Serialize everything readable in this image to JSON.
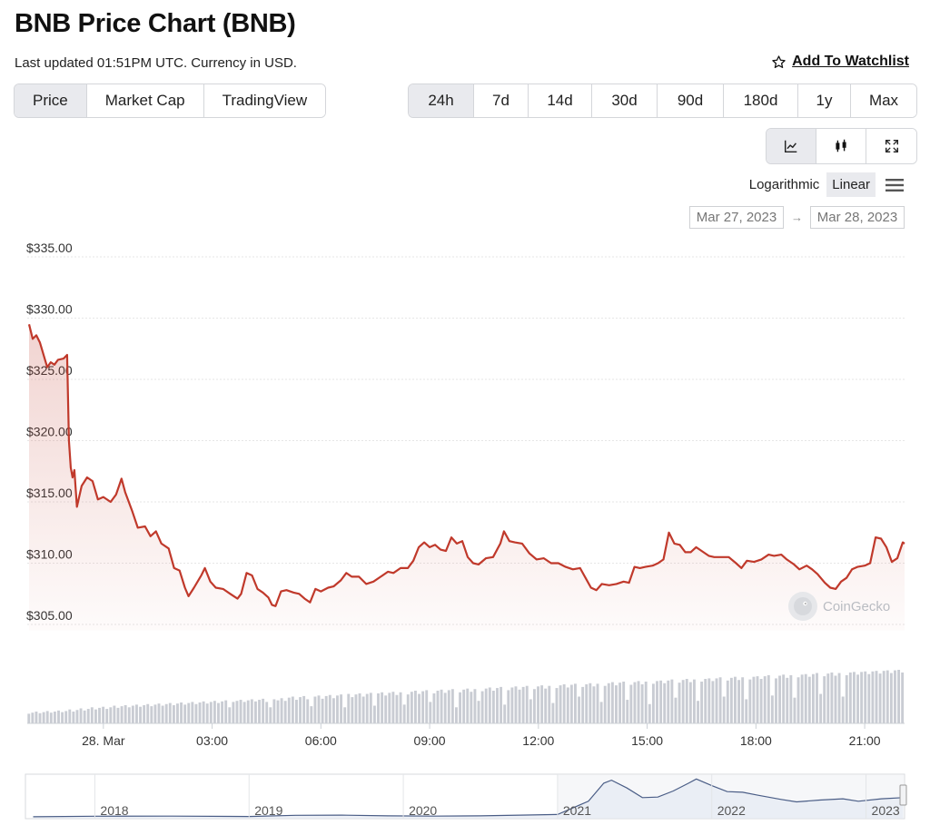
{
  "header": {
    "title": "BNB Price Chart (BNB)",
    "updated": "Last updated 01:51PM UTC. Currency in USD.",
    "watchlist_label": "Add To Watchlist"
  },
  "chart_types": [
    {
      "label": "Price",
      "active": true
    },
    {
      "label": "Market Cap",
      "active": false
    },
    {
      "label": "TradingView",
      "active": false
    }
  ],
  "ranges": [
    {
      "label": "24h",
      "active": true
    },
    {
      "label": "7d",
      "active": false
    },
    {
      "label": "14d",
      "active": false
    },
    {
      "label": "30d",
      "active": false
    },
    {
      "label": "90d",
      "active": false
    },
    {
      "label": "180d",
      "active": false
    },
    {
      "label": "1y",
      "active": false
    },
    {
      "label": "Max",
      "active": false
    }
  ],
  "views": [
    "line-chart-icon",
    "candlestick-icon",
    "fullscreen-icon"
  ],
  "scale": {
    "log_label": "Logarithmic",
    "linear_label": "Linear",
    "active": "Linear"
  },
  "date_range": {
    "from": "Mar 27, 2023",
    "to": "Mar 28, 2023"
  },
  "watermark": "CoinGecko",
  "colors": {
    "price_line": "#c0392b",
    "volume": "#c9ccd3",
    "navigator_line": "#4a5d86",
    "navigator_fill": "#e3e8f1"
  },
  "chart_data": {
    "type": "line",
    "title": "",
    "xlabel": "",
    "ylabel": "",
    "x_unit": "hours since 28 Mar 00:00 UTC",
    "xlim": [
      -2.1,
      22.1
    ],
    "ylim": [
      304,
      336
    ],
    "yticks": [
      335,
      330,
      325,
      320,
      315,
      310,
      305
    ],
    "ytick_labels": [
      "$335.00",
      "$330.00",
      "$325.00",
      "$320.00",
      "$315.00",
      "$310.00",
      "$305.00"
    ],
    "xticks": [
      {
        "x": 0,
        "label": "28. Mar"
      },
      {
        "x": 3,
        "label": "03:00"
      },
      {
        "x": 6,
        "label": "06:00"
      },
      {
        "x": 9,
        "label": "09:00"
      },
      {
        "x": 12,
        "label": "12:00"
      },
      {
        "x": 15,
        "label": "15:00"
      },
      {
        "x": 18,
        "label": "18:00"
      },
      {
        "x": 21,
        "label": "21:00"
      }
    ],
    "grid": "horizontal",
    "series": [
      {
        "points": [
          [
            -2.05,
            329.5
          ],
          [
            -1.95,
            328.3
          ],
          [
            -1.85,
            328.6
          ],
          [
            -1.75,
            328.0
          ],
          [
            -1.65,
            327.0
          ],
          [
            -1.55,
            326.0
          ],
          [
            -1.45,
            326.4
          ],
          [
            -1.35,
            326.2
          ],
          [
            -1.25,
            326.6
          ],
          [
            -1.1,
            326.7
          ],
          [
            -1.0,
            327.0
          ],
          [
            -0.95,
            320.0
          ],
          [
            -0.9,
            317.8
          ],
          [
            -0.85,
            317.0
          ],
          [
            -0.8,
            317.6
          ],
          [
            -0.73,
            314.6
          ],
          [
            -0.6,
            316.3
          ],
          [
            -0.45,
            317.0
          ],
          [
            -0.3,
            316.7
          ],
          [
            -0.15,
            315.2
          ],
          [
            0.0,
            315.4
          ],
          [
            0.2,
            315.0
          ],
          [
            0.35,
            315.6
          ],
          [
            0.5,
            316.9
          ],
          [
            0.6,
            315.8
          ],
          [
            0.8,
            314.2
          ],
          [
            0.95,
            312.9
          ],
          [
            1.15,
            313.0
          ],
          [
            1.3,
            312.2
          ],
          [
            1.45,
            312.6
          ],
          [
            1.6,
            311.6
          ],
          [
            1.8,
            311.2
          ],
          [
            1.95,
            309.6
          ],
          [
            2.1,
            309.4
          ],
          [
            2.25,
            308.0
          ],
          [
            2.35,
            307.3
          ],
          [
            2.5,
            308.0
          ],
          [
            2.7,
            309.0
          ],
          [
            2.8,
            309.6
          ],
          [
            2.95,
            308.5
          ],
          [
            3.1,
            308.0
          ],
          [
            3.3,
            307.9
          ],
          [
            3.5,
            307.5
          ],
          [
            3.7,
            307.1
          ],
          [
            3.8,
            307.5
          ],
          [
            3.95,
            309.2
          ],
          [
            4.1,
            309.0
          ],
          [
            4.25,
            307.9
          ],
          [
            4.4,
            307.6
          ],
          [
            4.55,
            307.2
          ],
          [
            4.65,
            306.6
          ],
          [
            4.75,
            306.5
          ],
          [
            4.9,
            307.7
          ],
          [
            5.05,
            307.8
          ],
          [
            5.25,
            307.6
          ],
          [
            5.4,
            307.5
          ],
          [
            5.55,
            307.1
          ],
          [
            5.7,
            306.8
          ],
          [
            5.85,
            307.9
          ],
          [
            6.0,
            307.7
          ],
          [
            6.2,
            308.0
          ],
          [
            6.35,
            308.1
          ],
          [
            6.55,
            308.6
          ],
          [
            6.7,
            309.2
          ],
          [
            6.85,
            308.9
          ],
          [
            7.05,
            308.9
          ],
          [
            7.25,
            308.3
          ],
          [
            7.45,
            308.5
          ],
          [
            7.65,
            308.9
          ],
          [
            7.85,
            309.3
          ],
          [
            8.0,
            309.2
          ],
          [
            8.2,
            309.6
          ],
          [
            8.4,
            309.6
          ],
          [
            8.55,
            310.2
          ],
          [
            8.7,
            311.3
          ],
          [
            8.85,
            311.7
          ],
          [
            9.0,
            311.3
          ],
          [
            9.15,
            311.5
          ],
          [
            9.3,
            311.1
          ],
          [
            9.45,
            311.0
          ],
          [
            9.6,
            312.1
          ],
          [
            9.75,
            311.6
          ],
          [
            9.9,
            311.8
          ],
          [
            10.05,
            310.5
          ],
          [
            10.2,
            310.0
          ],
          [
            10.35,
            309.9
          ],
          [
            10.55,
            310.4
          ],
          [
            10.75,
            310.5
          ],
          [
            10.95,
            311.6
          ],
          [
            11.05,
            312.6
          ],
          [
            11.2,
            311.8
          ],
          [
            11.35,
            311.7
          ],
          [
            11.55,
            311.6
          ],
          [
            11.75,
            310.8
          ],
          [
            11.95,
            310.3
          ],
          [
            12.15,
            310.4
          ],
          [
            12.35,
            310.0
          ],
          [
            12.55,
            310.0
          ],
          [
            12.75,
            309.7
          ],
          [
            12.95,
            309.5
          ],
          [
            13.15,
            309.6
          ],
          [
            13.3,
            308.8
          ],
          [
            13.45,
            308.0
          ],
          [
            13.6,
            307.8
          ],
          [
            13.75,
            308.3
          ],
          [
            13.95,
            308.2
          ],
          [
            14.15,
            308.3
          ],
          [
            14.35,
            308.5
          ],
          [
            14.5,
            308.4
          ],
          [
            14.65,
            309.7
          ],
          [
            14.8,
            309.6
          ],
          [
            14.95,
            309.7
          ],
          [
            15.15,
            309.8
          ],
          [
            15.3,
            310.0
          ],
          [
            15.45,
            310.3
          ],
          [
            15.6,
            312.5
          ],
          [
            15.75,
            311.6
          ],
          [
            15.9,
            311.5
          ],
          [
            16.05,
            310.9
          ],
          [
            16.2,
            310.9
          ],
          [
            16.35,
            311.3
          ],
          [
            16.5,
            311.0
          ],
          [
            16.7,
            310.6
          ],
          [
            16.85,
            310.5
          ],
          [
            17.05,
            310.5
          ],
          [
            17.25,
            310.5
          ],
          [
            17.45,
            310.0
          ],
          [
            17.6,
            309.6
          ],
          [
            17.75,
            310.2
          ],
          [
            17.95,
            310.1
          ],
          [
            18.15,
            310.3
          ],
          [
            18.35,
            310.7
          ],
          [
            18.5,
            310.6
          ],
          [
            18.7,
            310.7
          ],
          [
            18.85,
            310.3
          ],
          [
            19.05,
            309.9
          ],
          [
            19.2,
            309.5
          ],
          [
            19.4,
            309.8
          ],
          [
            19.55,
            309.5
          ],
          [
            19.7,
            309.1
          ],
          [
            19.9,
            308.4
          ],
          [
            20.05,
            308.0
          ],
          [
            20.2,
            307.9
          ],
          [
            20.35,
            308.5
          ],
          [
            20.5,
            308.8
          ],
          [
            20.65,
            309.5
          ],
          [
            20.8,
            309.7
          ],
          [
            21.0,
            309.8
          ],
          [
            21.15,
            310.0
          ],
          [
            21.3,
            312.1
          ],
          [
            21.45,
            312.0
          ],
          [
            21.6,
            311.3
          ],
          [
            21.75,
            310.1
          ],
          [
            21.9,
            310.4
          ],
          [
            22.05,
            311.7
          ],
          [
            22.1,
            311.6
          ]
        ]
      }
    ],
    "volume": [
      0.18,
      0.2,
      0.22,
      0.19,
      0.21,
      0.23,
      0.2,
      0.22,
      0.24,
      0.21,
      0.23,
      0.26,
      0.22,
      0.25,
      0.28,
      0.24,
      0.27,
      0.3,
      0.26,
      0.29,
      0.31,
      0.27,
      0.3,
      0.33,
      0.29,
      0.32,
      0.34,
      0.3,
      0.33,
      0.35,
      0.31,
      0.34,
      0.36,
      0.32,
      0.35,
      0.37,
      0.33,
      0.36,
      0.38,
      0.34,
      0.37,
      0.39,
      0.35,
      0.38,
      0.4,
      0.36,
      0.39,
      0.41,
      0.37,
      0.4,
      0.42,
      0.38,
      0.41,
      0.43,
      0.3,
      0.4,
      0.42,
      0.44,
      0.4,
      0.43,
      0.45,
      0.41,
      0.44,
      0.46,
      0.4,
      0.3,
      0.45,
      0.43,
      0.47,
      0.42,
      0.48,
      0.5,
      0.44,
      0.49,
      0.51,
      0.45,
      0.32,
      0.5,
      0.52,
      0.46,
      0.51,
      0.53,
      0.47,
      0.52,
      0.54,
      0.3,
      0.55,
      0.49,
      0.54,
      0.56,
      0.5,
      0.55,
      0.57,
      0.33,
      0.56,
      0.58,
      0.52,
      0.57,
      0.59,
      0.53,
      0.58,
      0.35,
      0.54,
      0.59,
      0.61,
      0.55,
      0.6,
      0.62,
      0.4,
      0.56,
      0.61,
      0.63,
      0.57,
      0.62,
      0.64,
      0.3,
      0.58,
      0.63,
      0.65,
      0.59,
      0.64,
      0.42,
      0.6,
      0.65,
      0.67,
      0.61,
      0.66,
      0.68,
      0.35,
      0.62,
      0.67,
      0.69,
      0.63,
      0.68,
      0.7,
      0.45,
      0.64,
      0.69,
      0.71,
      0.65,
      0.7,
      0.38,
      0.66,
      0.71,
      0.73,
      0.67,
      0.72,
      0.74,
      0.5,
      0.68,
      0.73,
      0.75,
      0.69,
      0.74,
      0.4,
      0.7,
      0.75,
      0.77,
      0.71,
      0.76,
      0.78,
      0.44,
      0.72,
      0.77,
      0.79,
      0.73,
      0.78,
      0.36,
      0.74,
      0.79,
      0.8,
      0.75,
      0.8,
      0.82,
      0.48,
      0.76,
      0.81,
      0.83,
      0.77,
      0.82,
      0.42,
      0.78,
      0.83,
      0.84,
      0.79,
      0.84,
      0.86,
      0.5,
      0.8,
      0.85,
      0.87,
      0.81,
      0.86,
      0.45,
      0.82,
      0.87,
      0.88,
      0.83,
      0.88,
      0.9,
      0.52,
      0.84,
      0.89,
      0.91,
      0.85,
      0.9,
      0.48,
      0.86,
      0.91,
      0.92,
      0.87,
      0.92,
      0.94,
      0.55,
      0.88,
      0.93,
      0.95,
      0.89,
      0.94,
      0.5,
      0.9,
      0.95,
      0.96,
      0.91,
      0.96,
      0.97,
      0.92,
      0.97,
      0.98,
      0.93,
      0.98,
      0.99,
      0.94,
      0.99,
      1.0,
      0.95
    ],
    "navigator": {
      "xticks": [
        "2018",
        "2019",
        "2020",
        "2021",
        "2022",
        "2023"
      ],
      "series": [
        [
          2017.6,
          2
        ],
        [
          2018.0,
          10
        ],
        [
          2018.5,
          12
        ],
        [
          2019.0,
          6
        ],
        [
          2019.3,
          25
        ],
        [
          2019.6,
          28
        ],
        [
          2019.9,
          16
        ],
        [
          2020.2,
          12
        ],
        [
          2020.5,
          17
        ],
        [
          2020.8,
          30
        ],
        [
          2021.0,
          40
        ],
        [
          2021.2,
          260
        ],
        [
          2021.3,
          560
        ],
        [
          2021.35,
          610
        ],
        [
          2021.45,
          480
        ],
        [
          2021.55,
          320
        ],
        [
          2021.65,
          330
        ],
        [
          2021.75,
          430
        ],
        [
          2021.85,
          560
        ],
        [
          2021.9,
          630
        ],
        [
          2022.0,
          520
        ],
        [
          2022.1,
          420
        ],
        [
          2022.2,
          410
        ],
        [
          2022.3,
          360
        ],
        [
          2022.45,
          290
        ],
        [
          2022.55,
          250
        ],
        [
          2022.7,
          280
        ],
        [
          2022.85,
          300
        ],
        [
          2022.95,
          260
        ],
        [
          2023.1,
          300
        ],
        [
          2023.24,
          320
        ]
      ]
    }
  }
}
